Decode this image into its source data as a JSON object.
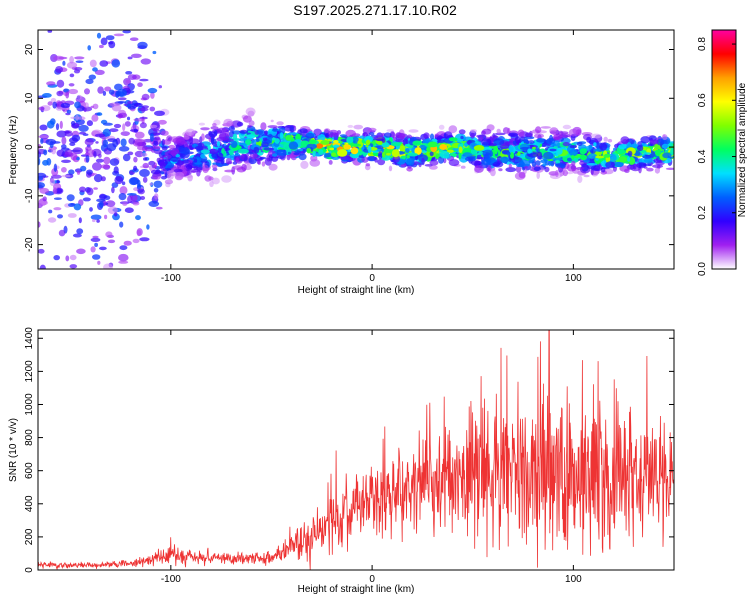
{
  "title": "S197.2025.271.17.10.R02",
  "chart_data": [
    {
      "type": "heatmap",
      "xlabel": "Height of straight line (km)",
      "ylabel": "Frequency (Hz)",
      "xlim": [
        -166,
        150
      ],
      "ylim": [
        -25,
        24
      ],
      "xticks": [
        -100,
        0,
        100
      ],
      "yticks": [
        -20,
        -10,
        0,
        10,
        20
      ],
      "colorbar": {
        "label": "Normalized spectral amplitude",
        "range": [
          0,
          0.85
        ],
        "ticks": [
          0.0,
          0.2,
          0.4,
          0.6,
          0.8
        ],
        "colors": [
          "#ffffff",
          "#a020f0",
          "#3000ff",
          "#0060ff",
          "#00e0ff",
          "#00ff60",
          "#80ff00",
          "#ffff00",
          "#ffa000",
          "#ff0000",
          "#ff00a0"
        ]
      },
      "band": {
        "description_points_x": [
          -160,
          -120,
          -100,
          -80,
          -60,
          -40,
          -20,
          0,
          20,
          40,
          60,
          80,
          100,
          120,
          140,
          150
        ],
        "center_freq": [
          0,
          0,
          -2,
          -1,
          1,
          1,
          0,
          0,
          -1,
          0,
          -1,
          -1,
          -1,
          -2,
          -1,
          -1
        ],
        "half_width": [
          24,
          24,
          4,
          5,
          5,
          3,
          3,
          3,
          3,
          3,
          4,
          4,
          4,
          3,
          3,
          3
        ],
        "peak_amplitude": [
          0.25,
          0.25,
          0.3,
          0.35,
          0.4,
          0.55,
          0.65,
          0.6,
          0.6,
          0.55,
          0.45,
          0.45,
          0.45,
          0.5,
          0.55,
          0.5
        ]
      }
    },
    {
      "type": "line",
      "xlabel": "Height of straight line (km)",
      "ylabel": "SNR (10 * v/v)",
      "xlim": [
        -166,
        150
      ],
      "ylim": [
        0,
        1450
      ],
      "xticks": [
        -100,
        0,
        100
      ],
      "yticks": [
        0,
        200,
        400,
        600,
        800,
        1000,
        1200,
        1400
      ],
      "color": "#ee3333",
      "envelope_x": [
        -166,
        -140,
        -120,
        -100,
        -80,
        -60,
        -45,
        -40,
        -30,
        -20,
        -10,
        0,
        10,
        20,
        30,
        40,
        50,
        60,
        70,
        80,
        90,
        100,
        110,
        120,
        130,
        140,
        150
      ],
      "mean_snr": [
        30,
        30,
        40,
        90,
        70,
        70,
        90,
        160,
        160,
        300,
        380,
        420,
        470,
        510,
        540,
        560,
        580,
        570,
        580,
        560,
        560,
        560,
        560,
        560,
        550,
        550,
        560
      ],
      "spread": [
        15,
        15,
        20,
        50,
        30,
        30,
        40,
        110,
        120,
        160,
        180,
        200,
        220,
        240,
        260,
        300,
        340,
        380,
        420,
        440,
        420,
        400,
        380,
        360,
        340,
        320,
        300
      ],
      "peak_value": 1450,
      "peak_x": 88
    }
  ]
}
